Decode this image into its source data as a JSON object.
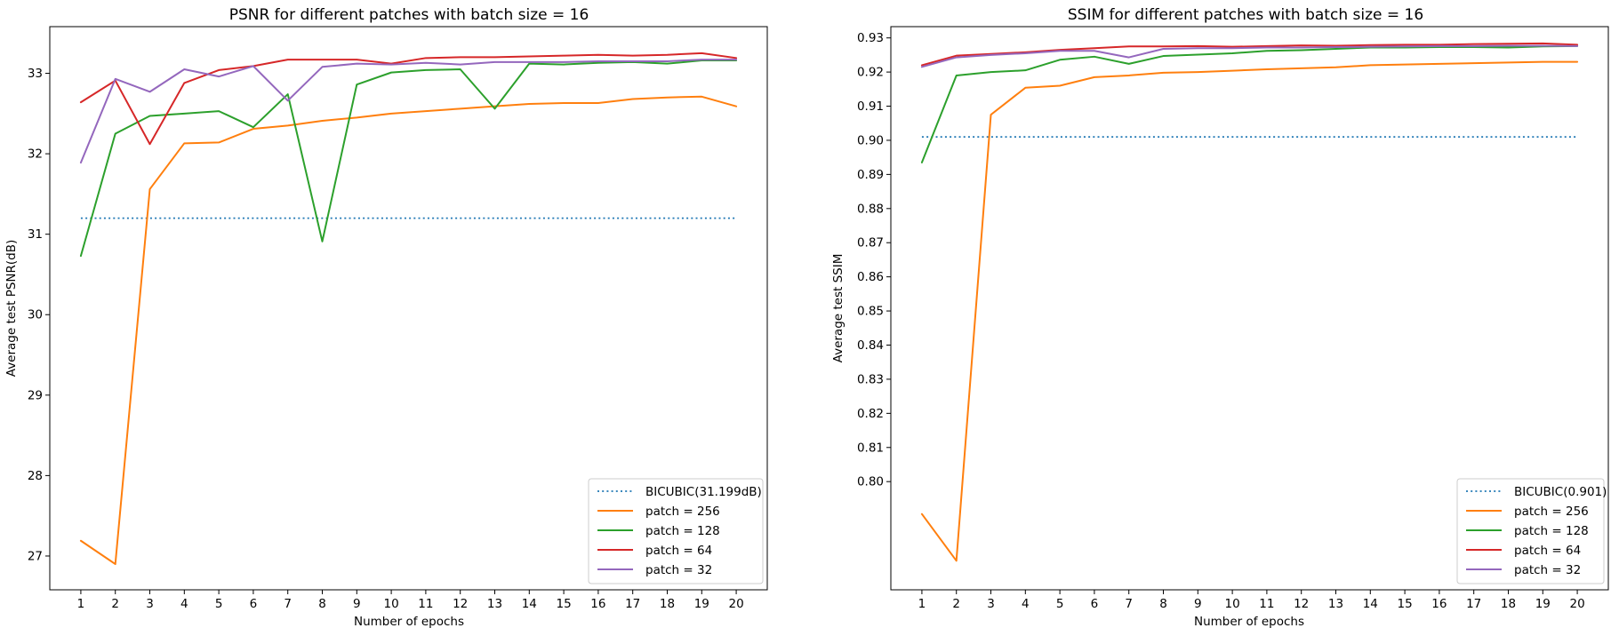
{
  "chart_data": [
    {
      "type": "line",
      "title": "PSNR for different patches with batch size = 16",
      "xlabel": "Number of epochs",
      "ylabel": "Average test PSNR(dB)",
      "x": [
        1,
        2,
        3,
        4,
        5,
        6,
        7,
        8,
        9,
        10,
        11,
        12,
        13,
        14,
        15,
        16,
        17,
        18,
        19,
        20
      ],
      "xlim": [
        0.1,
        20.9
      ],
      "ylim": [
        26.58,
        33.58
      ],
      "yticks": [
        27,
        28,
        29,
        30,
        31,
        32,
        33
      ],
      "ytick_labels": [
        "27",
        "28",
        "29",
        "30",
        "31",
        "32",
        "33"
      ],
      "grid": false,
      "legend_position": "lower-right",
      "series": [
        {
          "name": "BICUBIC(31.199dB)",
          "color": "#1f77b4",
          "style": "dotted",
          "values": [
            31.199,
            31.199,
            31.199,
            31.199,
            31.199,
            31.199,
            31.199,
            31.199,
            31.199,
            31.199,
            31.199,
            31.199,
            31.199,
            31.199,
            31.199,
            31.199,
            31.199,
            31.199,
            31.199,
            31.199
          ]
        },
        {
          "name": "patch = 256",
          "color": "#ff7f0e",
          "style": "solid",
          "values": [
            27.19,
            26.9,
            31.56,
            32.13,
            32.14,
            32.31,
            32.35,
            32.41,
            32.45,
            32.5,
            32.53,
            32.56,
            32.59,
            32.62,
            32.63,
            32.63,
            32.68,
            32.7,
            32.71,
            32.59
          ]
        },
        {
          "name": "patch = 128",
          "color": "#2ca02c",
          "style": "solid",
          "values": [
            30.73,
            32.25,
            32.47,
            32.5,
            32.53,
            32.33,
            32.74,
            30.91,
            32.86,
            33.01,
            33.04,
            33.05,
            32.56,
            33.12,
            33.11,
            33.13,
            33.14,
            33.12,
            33.16,
            33.16
          ]
        },
        {
          "name": "patch = 64",
          "color": "#d62728",
          "style": "solid",
          "values": [
            32.64,
            32.91,
            32.12,
            32.88,
            33.04,
            33.09,
            33.17,
            33.17,
            33.17,
            33.12,
            33.19,
            33.2,
            33.2,
            33.21,
            33.22,
            33.23,
            33.22,
            33.23,
            33.25,
            33.19
          ]
        },
        {
          "name": "patch = 32",
          "color": "#9467bd",
          "style": "solid",
          "values": [
            31.89,
            32.93,
            32.77,
            33.05,
            32.96,
            33.09,
            32.66,
            33.08,
            33.12,
            33.11,
            33.13,
            33.11,
            33.14,
            33.14,
            33.14,
            33.15,
            33.15,
            33.15,
            33.17,
            33.17
          ]
        }
      ]
    },
    {
      "type": "line",
      "title": "SSIM for different patches with batch size = 16",
      "xlabel": "Number of epochs",
      "ylabel": "Average test SSIM",
      "x": [
        1,
        2,
        3,
        4,
        5,
        6,
        7,
        8,
        9,
        10,
        11,
        12,
        13,
        14,
        15,
        16,
        17,
        18,
        19,
        20
      ],
      "xlim": [
        0.1,
        20.9
      ],
      "ylim": [
        0.7683,
        0.9333
      ],
      "yticks": [
        0.8,
        0.81,
        0.82,
        0.83,
        0.84,
        0.85,
        0.86,
        0.87,
        0.88,
        0.89,
        0.9,
        0.91,
        0.92,
        0.93
      ],
      "ytick_labels": [
        "0.80",
        "0.81",
        "0.82",
        "0.83",
        "0.84",
        "0.85",
        "0.86",
        "0.87",
        "0.88",
        "0.89",
        "0.90",
        "0.91",
        "0.92",
        "0.93"
      ],
      "grid": false,
      "legend_position": "lower-right",
      "series": [
        {
          "name": "BICUBIC(0.901)",
          "color": "#1f77b4",
          "style": "dotted",
          "values": [
            0.901,
            0.901,
            0.901,
            0.901,
            0.901,
            0.901,
            0.901,
            0.901,
            0.901,
            0.901,
            0.901,
            0.901,
            0.901,
            0.901,
            0.901,
            0.901,
            0.901,
            0.901,
            0.901,
            0.901
          ]
        },
        {
          "name": "patch = 256",
          "color": "#ff7f0e",
          "style": "solid",
          "values": [
            0.7905,
            0.7768,
            0.9075,
            0.9154,
            0.916,
            0.9185,
            0.919,
            0.9198,
            0.92,
            0.9204,
            0.9208,
            0.9211,
            0.9214,
            0.922,
            0.9222,
            0.9224,
            0.9226,
            0.9228,
            0.923,
            0.923
          ]
        },
        {
          "name": "patch = 128",
          "color": "#2ca02c",
          "style": "solid",
          "values": [
            0.8935,
            0.919,
            0.92,
            0.9205,
            0.9236,
            0.9245,
            0.9224,
            0.9247,
            0.9251,
            0.9255,
            0.9262,
            0.9264,
            0.9268,
            0.9272,
            0.9272,
            0.9273,
            0.9273,
            0.9272,
            0.9275,
            0.9276
          ]
        },
        {
          "name": "patch = 64",
          "color": "#d62728",
          "style": "solid",
          "values": [
            0.922,
            0.9248,
            0.9253,
            0.9258,
            0.9265,
            0.927,
            0.9275,
            0.9275,
            0.9276,
            0.9274,
            0.9276,
            0.9278,
            0.9277,
            0.9279,
            0.928,
            0.928,
            0.9282,
            0.9283,
            0.9284,
            0.928
          ]
        },
        {
          "name": "patch = 32",
          "color": "#9467bd",
          "style": "solid",
          "values": [
            0.9215,
            0.9243,
            0.925,
            0.9255,
            0.9262,
            0.9262,
            0.9243,
            0.9268,
            0.927,
            0.927,
            0.9272,
            0.9272,
            0.9273,
            0.9274,
            0.9275,
            0.9276,
            0.9276,
            0.9277,
            0.9277,
            0.9276
          ]
        }
      ]
    }
  ]
}
